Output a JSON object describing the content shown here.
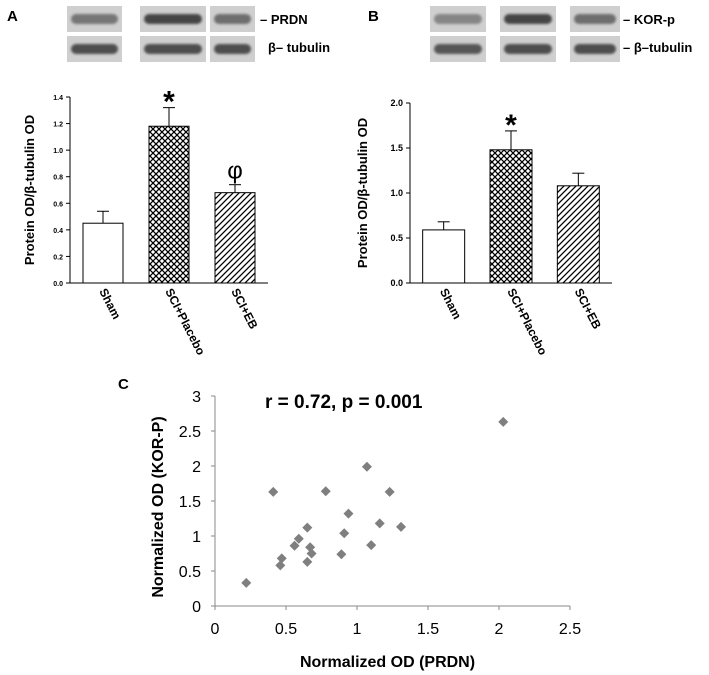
{
  "panels": {
    "A": {
      "letter": "A",
      "blot_labels": [
        "– PRDN",
        "β– tubulin"
      ]
    },
    "B": {
      "letter": "B",
      "blot_labels": [
        "– KOR-p",
        "– β–tubulin"
      ]
    },
    "C": {
      "letter": "C"
    }
  },
  "colors": {
    "scatter_marker": "#7f7f7f",
    "blot_bg": "#cfcfcf",
    "band": "#2e2e2e"
  },
  "chart_data": [
    {
      "id": "A",
      "type": "bar",
      "ylabel": "Protein OD/β-tubulin OD",
      "categories": [
        "Sham",
        "SCI+Placebo",
        "SCI+EB"
      ],
      "values": [
        0.45,
        1.18,
        0.68
      ],
      "errors": [
        0.09,
        0.14,
        0.06
      ],
      "patterns": [
        "none",
        "crosshatch",
        "diagonal"
      ],
      "annotations": [
        "",
        "*",
        "φ"
      ],
      "ylim": [
        0,
        1.4
      ],
      "yticks": [
        0.0,
        0.2,
        0.4,
        0.6,
        0.8,
        1.0,
        1.2,
        1.4
      ],
      "ytick_labels": [
        "0.0",
        "0.2",
        "0.4",
        "0.6",
        "0.8",
        "1.0",
        "1.2",
        "1.4"
      ],
      "grid": false
    },
    {
      "id": "B",
      "type": "bar",
      "ylabel": "Protein OD/β-tubulin OD",
      "categories": [
        "Sham",
        "SCI+Placebo",
        "SCI+EB"
      ],
      "values": [
        0.59,
        1.48,
        1.08
      ],
      "errors": [
        0.09,
        0.21,
        0.14
      ],
      "patterns": [
        "none",
        "crosshatch",
        "diagonal"
      ],
      "annotations": [
        "",
        "*",
        ""
      ],
      "ylim": [
        0,
        2.0
      ],
      "yticks": [
        0.0,
        0.5,
        1.0,
        1.5,
        2.0
      ],
      "ytick_labels": [
        "0.0",
        "0.5",
        "1.0",
        "1.5",
        "2.0"
      ],
      "grid": false
    },
    {
      "id": "C",
      "type": "scatter",
      "annotation": "r = 0.72, p = 0.001",
      "xlabel": "Normalized OD (PRDN)",
      "ylabel": "Normalized OD (KOR-P)",
      "xlim": [
        0,
        2.5
      ],
      "ylim": [
        0,
        3
      ],
      "xticks": [
        0,
        0.5,
        1,
        1.5,
        2,
        2.5
      ],
      "xtick_labels": [
        "0",
        "0.5",
        "1",
        "1.5",
        "2",
        "2.5"
      ],
      "yticks": [
        0,
        0.5,
        1,
        1.5,
        2,
        2.5,
        3
      ],
      "ytick_labels": [
        "0",
        "0.5",
        "1",
        "1.5",
        "2",
        "2.5",
        "3"
      ],
      "points": [
        [
          0.22,
          0.33
        ],
        [
          0.41,
          1.63
        ],
        [
          0.46,
          0.58
        ],
        [
          0.47,
          0.68
        ],
        [
          0.56,
          0.86
        ],
        [
          0.59,
          0.96
        ],
        [
          0.65,
          0.63
        ],
        [
          0.65,
          1.12
        ],
        [
          0.67,
          0.84
        ],
        [
          0.68,
          0.75
        ],
        [
          0.78,
          1.64
        ],
        [
          0.89,
          0.74
        ],
        [
          0.91,
          1.04
        ],
        [
          0.94,
          1.32
        ],
        [
          1.07,
          1.99
        ],
        [
          1.1,
          0.87
        ],
        [
          1.16,
          1.18
        ],
        [
          1.23,
          1.63
        ],
        [
          1.31,
          1.13
        ],
        [
          2.03,
          2.63
        ]
      ],
      "grid": false
    }
  ]
}
